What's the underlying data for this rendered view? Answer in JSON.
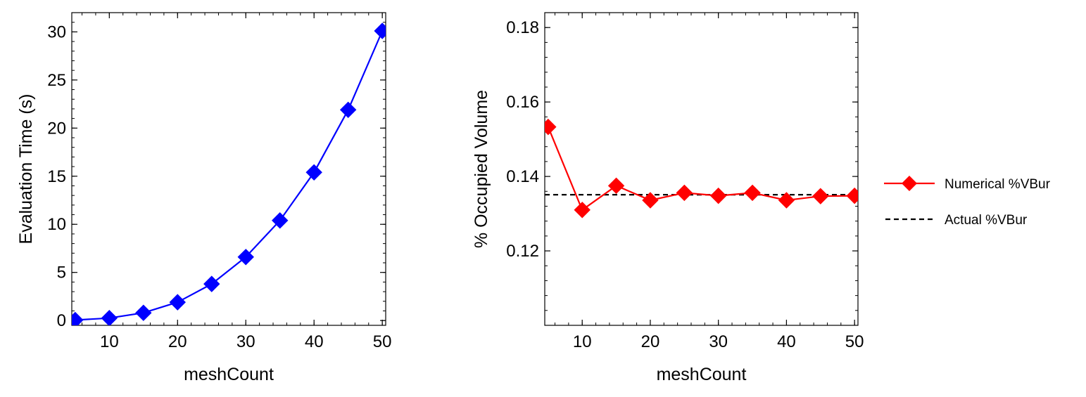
{
  "chart_data": [
    {
      "type": "line",
      "xlabel": "meshCount",
      "ylabel": "Evaluation Time (s)",
      "xlim": [
        4.5,
        50.5
      ],
      "ylim": [
        -0.5,
        32
      ],
      "xticks": [
        10,
        20,
        30,
        40,
        50
      ],
      "yticks": [
        0,
        5,
        10,
        15,
        20,
        25,
        30
      ],
      "x_minor_step": 2,
      "y_minor_step": 1,
      "grid": false,
      "series": [
        {
          "color": "#0000ff",
          "marker": "diamond",
          "x": [
            5,
            10,
            15,
            20,
            25,
            30,
            35,
            40,
            45,
            50
          ],
          "values": [
            0.05,
            0.25,
            0.8,
            1.9,
            3.8,
            6.6,
            10.4,
            15.4,
            21.9,
            30.1
          ]
        }
      ]
    },
    {
      "type": "line",
      "xlabel": "meshCount",
      "ylabel": "% Occupied Volume",
      "xlim": [
        4.5,
        50.5
      ],
      "ylim": [
        0.1,
        0.184
      ],
      "xticks": [
        10,
        20,
        30,
        40,
        50
      ],
      "yticks": [
        0.12,
        0.14,
        0.16,
        0.18
      ],
      "x_minor_step": 2,
      "y_minor_step": 0.004,
      "grid": false,
      "legend_position": "right",
      "series": [
        {
          "name": "Numerical %VBur",
          "color": "#ff0000",
          "marker": "diamond",
          "x": [
            5,
            10,
            15,
            20,
            25,
            30,
            35,
            40,
            45,
            50
          ],
          "values": [
            0.1533,
            0.131,
            0.1375,
            0.1336,
            0.1356,
            0.1348,
            0.1356,
            0.1336,
            0.1347,
            0.1348
          ]
        },
        {
          "name": "Actual %VBur",
          "color": "#000000",
          "style": "dashed",
          "x": [
            4.5,
            50.5
          ],
          "values": [
            0.1351,
            0.1351
          ]
        }
      ]
    }
  ]
}
